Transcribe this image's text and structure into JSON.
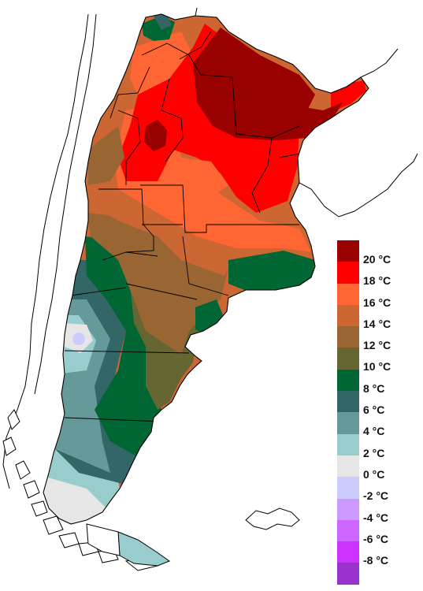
{
  "map": {
    "colors": {
      "c20": "#990000",
      "c18": "#ff0000",
      "c16": "#ff6633",
      "c14": "#cc6633",
      "c12": "#996633",
      "c10": "#666633",
      "c8": "#006633",
      "c6": "#336666",
      "c4": "#669999",
      "c2": "#99cccc",
      "c0": "#e6e6e6",
      "cm2": "#ccccff",
      "land_outline": "#000000",
      "water": "#ffffff"
    }
  },
  "legend": {
    "items": [
      {
        "label": "20 °C",
        "color": "#990000"
      },
      {
        "label": "18 °C",
        "color": "#ff0000"
      },
      {
        "label": "16 °C",
        "color": "#ff6633"
      },
      {
        "label": "14 °C",
        "color": "#cc6633"
      },
      {
        "label": "12 °C",
        "color": "#996633"
      },
      {
        "label": "10 °C",
        "color": "#666633"
      },
      {
        "label": "8 °C",
        "color": "#006633"
      },
      {
        "label": "6 °C",
        "color": "#336666"
      },
      {
        "label": "4 °C",
        "color": "#669999"
      },
      {
        "label": "2 °C",
        "color": "#99cccc"
      },
      {
        "label": "0 °C",
        "color": "#e6e6e6"
      },
      {
        "label": "-2 °C",
        "color": "#ccccff"
      },
      {
        "label": "-4 °C",
        "color": "#cc99ff"
      },
      {
        "label": "-6 °C",
        "color": "#cc66ff"
      },
      {
        "label": "-8 °C",
        "color": "#cc33ff"
      },
      {
        "label": "",
        "color": "#9933cc"
      }
    ]
  }
}
